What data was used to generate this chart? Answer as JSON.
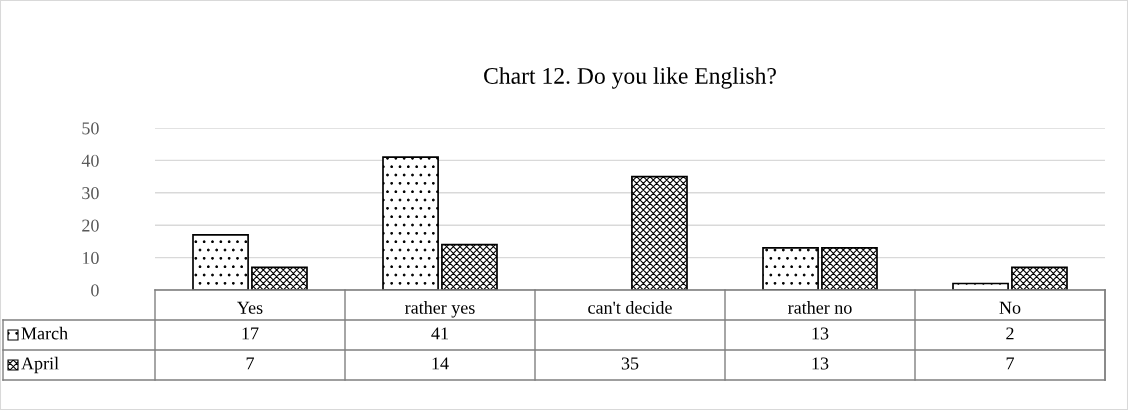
{
  "chart_data": {
    "type": "bar",
    "title": "Chart 12. Do you like English?",
    "categories": [
      "Yes",
      "rather yes",
      "can't decide",
      "rather no",
      "No"
    ],
    "series": [
      {
        "name": "March",
        "color": "#000000",
        "values": [
          17,
          41,
          null,
          13,
          2
        ]
      },
      {
        "name": "April",
        "color": "#000000",
        "values": [
          7,
          14,
          35,
          13,
          7
        ]
      }
    ],
    "ylim": [
      0,
      50
    ],
    "yticks": [
      0,
      10,
      20,
      30,
      40,
      50
    ],
    "grid": "y",
    "legend": "bottom",
    "data_labels": true
  }
}
